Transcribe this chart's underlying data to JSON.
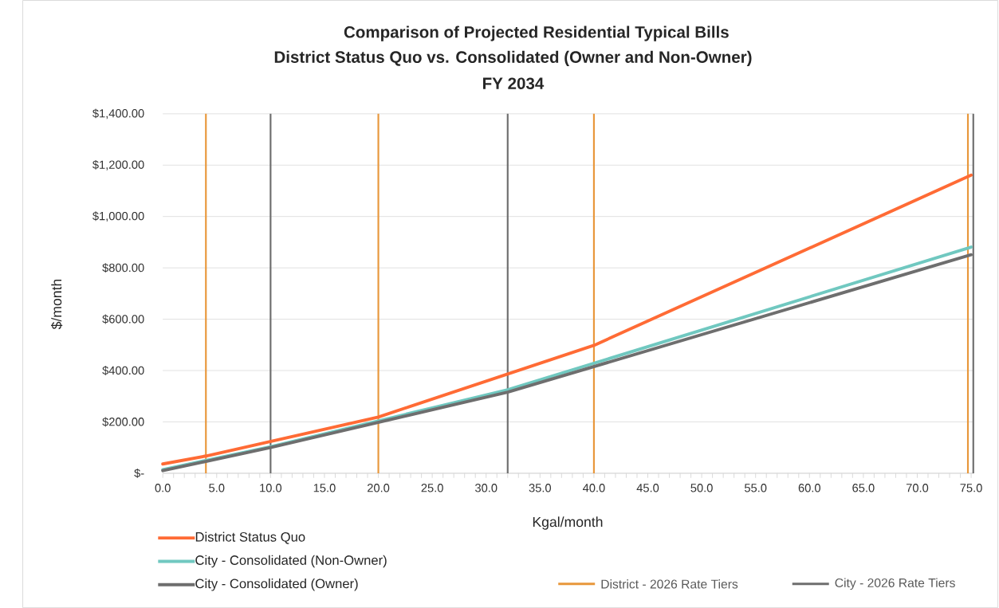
{
  "chart_data": {
    "type": "line",
    "title": "Comparison of Projected Residential Typical Bills",
    "subtitle": "District Status Quo vs. Consolidated (Owner and Non-Owner)",
    "annotations": [
      "FY 2034"
    ],
    "xlabel": "Kgal/month",
    "ylabel": "$/month",
    "series": [
      {
        "name": "District Status Quo",
        "color": "#ff6b35",
        "x": [
          0,
          4,
          20,
          40,
          75
        ],
        "values": [
          36,
          67,
          219,
          498,
          1161
        ]
      },
      {
        "name": "City - Consolidated (Non-Owner)",
        "color": "#70c8c0",
        "x": [
          0,
          10,
          32,
          75
        ],
        "values": [
          14,
          103,
          325,
          881
        ]
      },
      {
        "name": "City - Consolidated (Owner)",
        "color": "#6e6e6e",
        "x": [
          0,
          10,
          32,
          75
        ],
        "values": [
          10,
          100,
          316,
          851
        ]
      }
    ],
    "xlim": [
      0,
      75.2
    ],
    "ylim": [
      0,
      1400
    ],
    "xticks": [
      {
        "value": 0,
        "label": "0.0"
      },
      {
        "value": 5,
        "label": "5.0"
      },
      {
        "value": 10,
        "label": "10.0"
      },
      {
        "value": 15,
        "label": "15.0"
      },
      {
        "value": 20,
        "label": "20.0"
      },
      {
        "value": 25,
        "label": "25.0"
      },
      {
        "value": 30,
        "label": "30.0"
      },
      {
        "value": 35,
        "label": "35.0"
      },
      {
        "value": 40,
        "label": "40.0"
      },
      {
        "value": 45,
        "label": "45.0"
      },
      {
        "value": 50,
        "label": "50.0"
      },
      {
        "value": 55,
        "label": "55.0"
      },
      {
        "value": 60,
        "label": "60.0"
      },
      {
        "value": 65,
        "label": "65.0"
      },
      {
        "value": 70,
        "label": "70.0"
      },
      {
        "value": 75,
        "label": "75.0"
      }
    ],
    "yticks": [
      {
        "value": 0,
        "label": "$-"
      },
      {
        "value": 200,
        "label": "$200.00"
      },
      {
        "value": 400,
        "label": "$400.00"
      },
      {
        "value": 600,
        "label": "$600.00"
      },
      {
        "value": 800,
        "label": "$800.00"
      },
      {
        "value": 1000,
        "label": "$1,000.00"
      },
      {
        "value": 1200,
        "label": "$1,200.00"
      },
      {
        "value": 1400,
        "label": "$1,400.00"
      }
    ],
    "ref_lines": [
      {
        "axis": "x",
        "value": 4,
        "color": "#e8973b",
        "label": "District - 2026 Rate Tiers"
      },
      {
        "axis": "x",
        "value": 20,
        "color": "#e8973b"
      },
      {
        "axis": "x",
        "value": 40,
        "color": "#e8973b"
      },
      {
        "axis": "x",
        "value": 74.7,
        "color": "#e8973b"
      },
      {
        "axis": "x",
        "value": 10,
        "color": "#6e6e6e",
        "label": "City - 2026 Rate Tiers"
      },
      {
        "axis": "x",
        "value": 32,
        "color": "#6e6e6e"
      },
      {
        "axis": "x",
        "value": 75.2,
        "color": "#6e6e6e"
      }
    ],
    "grid": "y",
    "legend": "bottom",
    "line_style": "solid",
    "marker": "none"
  }
}
